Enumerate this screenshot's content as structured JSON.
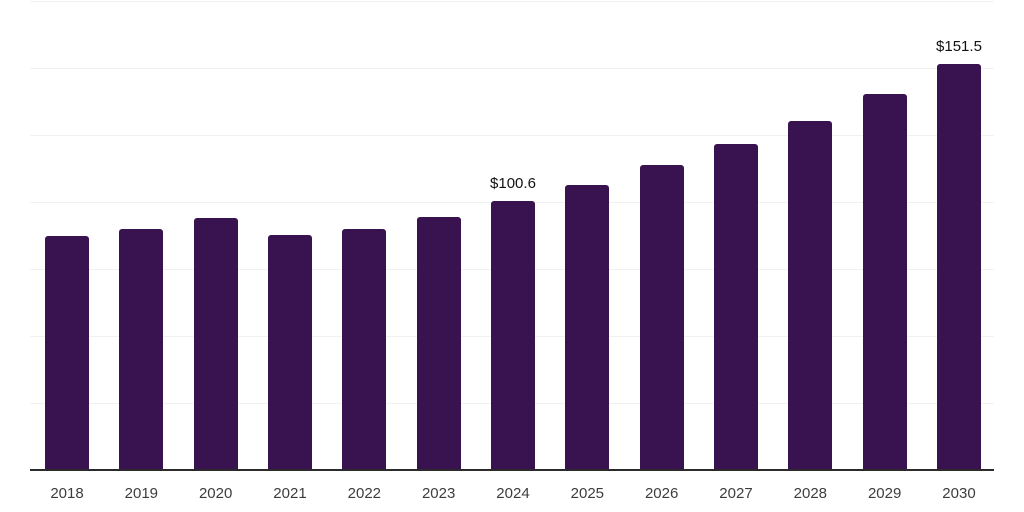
{
  "chart_data": {
    "type": "bar",
    "title": "",
    "xlabel": "",
    "ylabel": "",
    "categories": [
      "2018",
      "2019",
      "2020",
      "2021",
      "2022",
      "2023",
      "2024",
      "2025",
      "2026",
      "2027",
      "2028",
      "2029",
      "2030"
    ],
    "values": [
      87.5,
      90.0,
      94.0,
      87.8,
      90.0,
      94.6,
      100.6,
      106.5,
      113.8,
      121.6,
      130.5,
      140.5,
      151.5
    ],
    "data_labels": [
      "",
      "",
      "",
      "",
      "",
      "",
      "$100.6",
      "",
      "",
      "",
      "",
      "",
      "$151.5"
    ],
    "ylim": [
      0,
      175
    ],
    "gridline_step": 25,
    "grid": "horizontal-only",
    "legend": "none",
    "y_axis_tick_labels": "none",
    "colors": {
      "bar": "#38134f",
      "gridline": "#f1f1f2",
      "axis_line": "#2b2b2b",
      "tick_label": "#3d3d3d",
      "data_label": "#111111",
      "background": "#ffffff"
    }
  }
}
